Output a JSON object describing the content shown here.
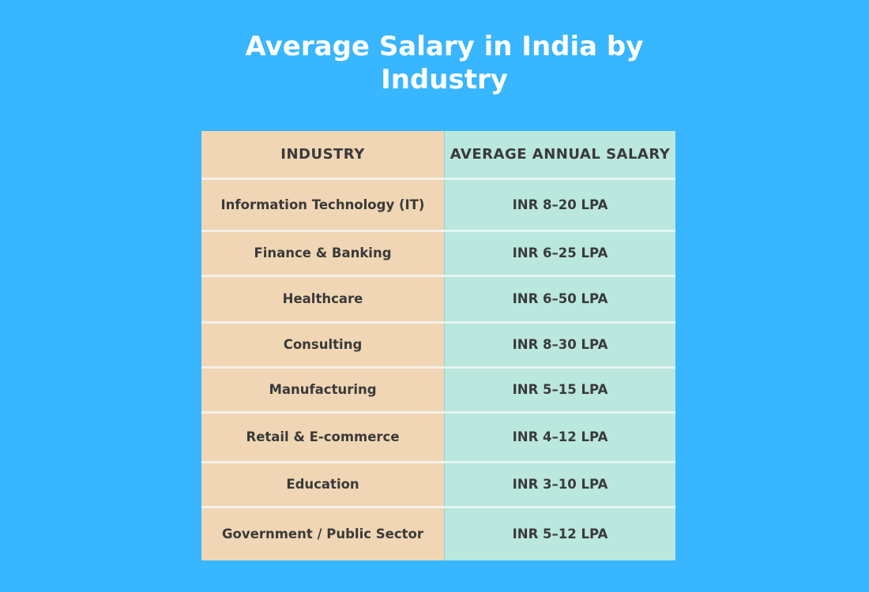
{
  "title": "Average Salary in India by Industry",
  "chart_data": {
    "type": "table",
    "columns": [
      "INDUSTRY",
      "AVERAGE ANNUAL SALARY"
    ],
    "rows": [
      {
        "industry": "Information Technology (IT)",
        "salary": "INR 8–20 LPA"
      },
      {
        "industry": "Finance & Banking",
        "salary": "INR 6–25 LPA"
      },
      {
        "industry": "Healthcare",
        "salary": "INR 6–50 LPA"
      },
      {
        "industry": "Consulting",
        "salary": "INR 8–30 LPA"
      },
      {
        "industry": "Manufacturing",
        "salary": "INR 5–15 LPA"
      },
      {
        "industry": "Retail & E-commerce",
        "salary": "INR 4–12 LPA"
      },
      {
        "industry": "Education",
        "salary": "INR 3–10 LPA"
      },
      {
        "industry": "Government / Public Sector",
        "salary": "INR 5–12 LPA"
      }
    ]
  },
  "colors": {
    "background": "#38b6ff",
    "industry_column": "#f0d6b4",
    "salary_column": "#bae7de",
    "text": "#3a3a3a",
    "title": "#ffffff"
  }
}
